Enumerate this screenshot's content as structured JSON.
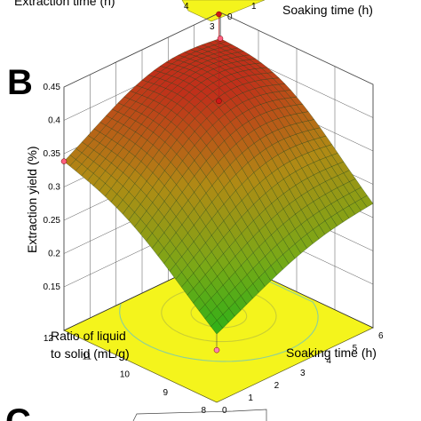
{
  "figure": {
    "panel_letter_main": "B",
    "panel_letter_next": "C"
  },
  "top_strip": {
    "xlabel": "Extraction time (h)",
    "ylabel": "Soaking time (h)",
    "ticks_left": [
      "4"
    ],
    "ticks_floor": [
      "3",
      "0"
    ],
    "ticks_right": [
      "1"
    ]
  },
  "chart_data": {
    "type": "surface3d",
    "title": "",
    "zlabel": "Extraction yield (%)",
    "xlabel": "Ratio of liquid\nto solid (mL/g)",
    "xlabel_lines": [
      "Ratio of liquid",
      "to solid (mL/g)"
    ],
    "ylabel": "Soaking time (h)",
    "x_ticks": [
      "8",
      "9",
      "10",
      "11",
      "12"
    ],
    "y_ticks": [
      "0",
      "1",
      "2",
      "3",
      "4",
      "5",
      "6"
    ],
    "z_ticks": [
      "0.15",
      "0.2",
      "0.25",
      "0.3",
      "0.35",
      "0.4",
      "0.45"
    ],
    "xlim": [
      8,
      12
    ],
    "ylim": [
      0,
      6
    ],
    "zlim": [
      0.15,
      0.45
    ],
    "surface_corners": [
      {
        "x": 12,
        "y": 0,
        "z": 0.315
      },
      {
        "x": 12,
        "y": 6,
        "z": 0.37
      },
      {
        "x": 8,
        "y": 6,
        "z": 0.25
      },
      {
        "x": 8,
        "y": 0,
        "z": 0.175
      }
    ],
    "surface_peak": {
      "x": 10.4,
      "y": 3.6,
      "z": 0.405
    },
    "colormap": [
      "#19b319",
      "#7aa817",
      "#b08a15",
      "#c0301a"
    ],
    "floor_color": "#f4f41c",
    "contour_color": "#c9ce33",
    "grid": true
  }
}
